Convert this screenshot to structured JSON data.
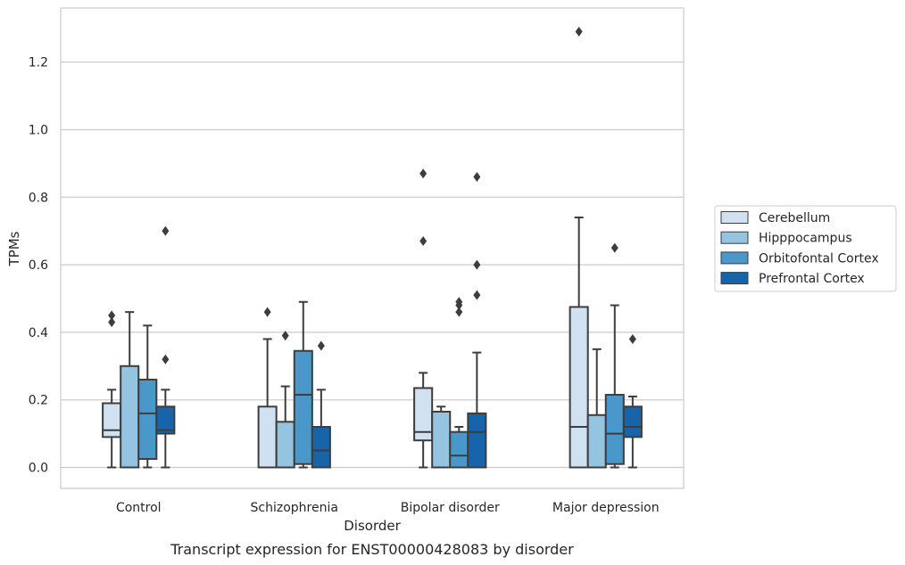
{
  "chart_data": {
    "type": "box",
    "caption": "Transcript expression for ENST00000428083 by disorder",
    "xlabel": "Disorder",
    "ylabel": "TPMs",
    "ylim": [
      -0.062,
      1.36
    ],
    "yticks": [
      0.0,
      0.2,
      0.4,
      0.6,
      0.8,
      1.0,
      1.2
    ],
    "ytick_labels": [
      "0.0",
      "0.2",
      "0.4",
      "0.6",
      "0.8",
      "1.0",
      "1.2"
    ],
    "grid": true,
    "legend_position": "right",
    "categories": [
      "Control",
      "Schizophrenia",
      "Bipolar disorder",
      "Major depression"
    ],
    "series": [
      {
        "name": "Cerebellum",
        "color": "#d0e1f2",
        "boxes": [
          {
            "whislo": 0.0,
            "q1": 0.09,
            "med": 0.11,
            "q3": 0.19,
            "whishi": 0.23,
            "fliers": [
              0.43,
              0.45
            ]
          },
          {
            "whislo": 0.0,
            "q1": 0.0,
            "med": 0.0,
            "q3": 0.18,
            "whishi": 0.38,
            "fliers": [
              0.46
            ]
          },
          {
            "whislo": 0.0,
            "q1": 0.08,
            "med": 0.105,
            "q3": 0.235,
            "whishi": 0.28,
            "fliers": [
              0.67,
              0.87
            ]
          },
          {
            "whislo": 0.0,
            "q1": 0.0,
            "med": 0.12,
            "q3": 0.475,
            "whishi": 0.74,
            "fliers": [
              1.29
            ]
          }
        ]
      },
      {
        "name": "Hipppocampus",
        "color": "#94c4df",
        "boxes": [
          {
            "whislo": 0.0,
            "q1": 0.0,
            "med": 0.0,
            "q3": 0.3,
            "whishi": 0.46,
            "fliers": []
          },
          {
            "whislo": 0.0,
            "q1": 0.0,
            "med": 0.0,
            "q3": 0.135,
            "whishi": 0.24,
            "fliers": [
              0.39
            ]
          },
          {
            "whislo": 0.0,
            "q1": 0.0,
            "med": 0.0,
            "q3": 0.165,
            "whishi": 0.18,
            "fliers": []
          },
          {
            "whislo": 0.0,
            "q1": 0.0,
            "med": 0.0,
            "q3": 0.155,
            "whishi": 0.35,
            "fliers": []
          }
        ]
      },
      {
        "name": "Orbitofontal Cortex",
        "color": "#4a98c9",
        "boxes": [
          {
            "whislo": 0.0,
            "q1": 0.025,
            "med": 0.16,
            "q3": 0.26,
            "whishi": 0.42,
            "fliers": []
          },
          {
            "whislo": 0.0,
            "q1": 0.01,
            "med": 0.215,
            "q3": 0.345,
            "whishi": 0.49,
            "fliers": []
          },
          {
            "whislo": 0.0,
            "q1": 0.0,
            "med": 0.035,
            "q3": 0.105,
            "whishi": 0.12,
            "fliers": [
              0.46,
              0.48,
              0.49
            ]
          },
          {
            "whislo": 0.0,
            "q1": 0.01,
            "med": 0.1,
            "q3": 0.215,
            "whishi": 0.48,
            "fliers": [
              0.65
            ]
          }
        ]
      },
      {
        "name": "Prefrontal Cortex",
        "color": "#1764ab",
        "boxes": [
          {
            "whislo": 0.0,
            "q1": 0.1,
            "med": 0.11,
            "q3": 0.18,
            "whishi": 0.23,
            "fliers": [
              0.32,
              0.7
            ]
          },
          {
            "whislo": 0.0,
            "q1": 0.0,
            "med": 0.05,
            "q3": 0.12,
            "whishi": 0.23,
            "fliers": [
              0.36
            ]
          },
          {
            "whislo": 0.0,
            "q1": 0.0,
            "med": 0.105,
            "q3": 0.16,
            "whishi": 0.34,
            "fliers": [
              0.51,
              0.6,
              0.86
            ]
          },
          {
            "whislo": 0.0,
            "q1": 0.09,
            "med": 0.12,
            "q3": 0.18,
            "whishi": 0.21,
            "fliers": [
              0.38
            ]
          }
        ]
      }
    ]
  }
}
